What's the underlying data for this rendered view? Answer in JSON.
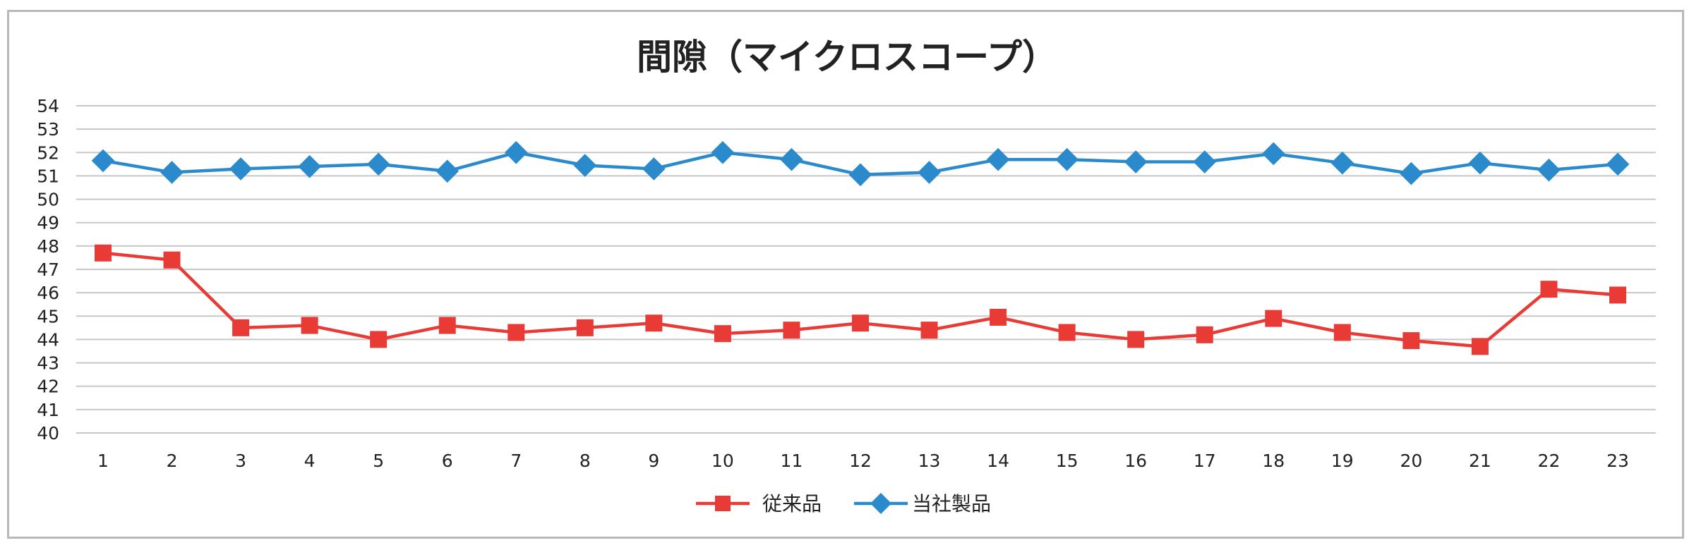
{
  "chart_data": {
    "type": "line",
    "title": "間隙（マイクロスコープ）",
    "xlabel": "",
    "ylabel": "",
    "ylim": [
      40,
      54
    ],
    "yticks": [
      40,
      41,
      42,
      43,
      44,
      45,
      46,
      47,
      48,
      49,
      50,
      51,
      52,
      53,
      54
    ],
    "categories": [
      "1",
      "2",
      "3",
      "4",
      "5",
      "6",
      "7",
      "8",
      "9",
      "10",
      "11",
      "12",
      "13",
      "14",
      "15",
      "16",
      "17",
      "18",
      "19",
      "20",
      "21",
      "22",
      "23"
    ],
    "grid": true,
    "legend_position": "bottom",
    "series": [
      {
        "name": "従来品",
        "color": "#e83b36",
        "marker": "square",
        "values": [
          47.7,
          47.4,
          44.5,
          44.6,
          44.0,
          44.6,
          44.3,
          44.5,
          44.7,
          44.25,
          44.4,
          44.7,
          44.4,
          44.95,
          44.3,
          44.0,
          44.2,
          44.9,
          44.3,
          43.95,
          43.7,
          46.15,
          45.9
        ]
      },
      {
        "name": "当社製品",
        "color": "#2a8acb",
        "marker": "diamond",
        "values": [
          51.65,
          51.15,
          51.3,
          51.4,
          51.5,
          51.2,
          52.0,
          51.45,
          51.3,
          52.0,
          51.7,
          51.05,
          51.15,
          51.7,
          51.7,
          51.6,
          51.6,
          51.95,
          51.55,
          51.1,
          51.55,
          51.25,
          51.5
        ]
      }
    ]
  }
}
